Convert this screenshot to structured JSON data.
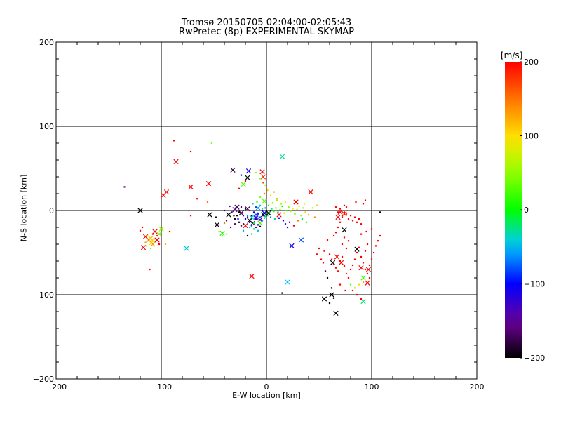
{
  "title": "Tromsø 20150705 02:04:00-02:05:43",
  "subtitle": "RwPretec (8p) EXPERIMENTAL SKYMAP",
  "colorbar": {
    "unit": "[m/s]",
    "ticks": [
      "200",
      "100",
      "0",
      "-100",
      "-200"
    ],
    "tick_values": [
      200,
      100,
      0,
      -100,
      -200
    ],
    "range": [
      -200,
      200
    ],
    "colormap": "rainbow (black-purple-blue-cyan-green-yellow-orange-red)"
  },
  "chart_data": {
    "type": "scatter",
    "title": "Tromsø 20150705 02:04:00-02:05:43",
    "subtitle": "RwPretec (8p) EXPERIMENTAL SKYMAP",
    "xlabel": "E-W location [km]",
    "ylabel": "N-S location [km]",
    "xlim": [
      -200,
      200
    ],
    "ylim": [
      -200,
      200
    ],
    "x_ticks": [
      "-200",
      "-100",
      "0",
      "100",
      "200"
    ],
    "y_ticks": [
      "200",
      "100",
      "0",
      "-100",
      "-200"
    ],
    "grid": "major lines at -100, 0, 100",
    "color_variable": "velocity [m/s]",
    "markers": {
      "x": "large crosses",
      "dot": "small points"
    },
    "points": [
      [
        -120,
        0,
        -200,
        "x"
      ],
      [
        -112,
        -35,
        150,
        "x"
      ],
      [
        -109,
        -38,
        100,
        "x"
      ],
      [
        -115,
        -31,
        200,
        "x"
      ],
      [
        -110,
        -33,
        120,
        "x"
      ],
      [
        -108,
        -40,
        130,
        "x"
      ],
      [
        -117,
        -44,
        200,
        "x"
      ],
      [
        -104,
        -35,
        200,
        "x"
      ],
      [
        -100,
        -22,
        50,
        "x"
      ],
      [
        -102,
        -28,
        40,
        "x"
      ],
      [
        -106,
        -25,
        200,
        "x"
      ],
      [
        -98,
        18,
        200,
        "x"
      ],
      [
        -95,
        22,
        190,
        "x"
      ],
      [
        -76,
        -45,
        -40,
        "x"
      ],
      [
        -72,
        28,
        200,
        "x"
      ],
      [
        -86,
        58,
        200,
        "x"
      ],
      [
        -55,
        32,
        200,
        "x"
      ],
      [
        -54,
        -5,
        -200,
        "x"
      ],
      [
        -47,
        -17,
        -190,
        "x"
      ],
      [
        -42,
        -27,
        0,
        "x"
      ],
      [
        -32,
        48,
        -180,
        "x"
      ],
      [
        -28,
        4,
        -180,
        "x"
      ],
      [
        -30,
        1,
        -150,
        "x"
      ],
      [
        -24,
        -3,
        -180,
        "x"
      ],
      [
        -36,
        -5,
        -200,
        "x"
      ],
      [
        -18,
        2,
        -170,
        "x"
      ],
      [
        -16,
        -12,
        -200,
        "x"
      ],
      [
        -13,
        -15,
        -170,
        "x"
      ],
      [
        -10,
        -8,
        -140,
        "x"
      ],
      [
        -6,
        -11,
        -120,
        "x"
      ],
      [
        -2,
        -3,
        -100,
        "x"
      ],
      [
        -22,
        31,
        30,
        "x"
      ],
      [
        -18,
        39,
        -200,
        "x"
      ],
      [
        -17,
        47,
        -110,
        "x"
      ],
      [
        -20,
        -18,
        200,
        "x"
      ],
      [
        -4,
        46,
        200,
        "x"
      ],
      [
        -3,
        40,
        180,
        "x"
      ],
      [
        -3,
        -5,
        -200,
        "x"
      ],
      [
        2,
        -3,
        -200,
        "x"
      ],
      [
        -2,
        11,
        30,
        "x"
      ],
      [
        -14,
        -8,
        -40,
        "x"
      ],
      [
        -8,
        3,
        -60,
        "x"
      ],
      [
        -6,
        -15,
        30,
        "x"
      ],
      [
        -10,
        -5,
        -80,
        "x"
      ],
      [
        -14,
        -78,
        200,
        "x"
      ],
      [
        15,
        64,
        -30,
        "x"
      ],
      [
        12,
        -5,
        200,
        "x"
      ],
      [
        24,
        -42,
        -110,
        "x"
      ],
      [
        33,
        -35,
        -80,
        "x"
      ],
      [
        28,
        10,
        200,
        "x"
      ],
      [
        42,
        22,
        200,
        "x"
      ],
      [
        20,
        -85,
        -50,
        "x"
      ],
      [
        55,
        -105,
        -200,
        "x"
      ],
      [
        62,
        -100,
        -200,
        "x"
      ],
      [
        66,
        -122,
        -200,
        "x"
      ],
      [
        63,
        -62,
        -200,
        "x"
      ],
      [
        74,
        -23,
        -200,
        "x"
      ],
      [
        71,
        -62,
        200,
        "x"
      ],
      [
        67,
        -55,
        200,
        "x"
      ],
      [
        86,
        -46,
        -200,
        "x"
      ],
      [
        90,
        -68,
        200,
        "x"
      ],
      [
        97,
        -70,
        200,
        "x"
      ],
      [
        96,
        -86,
        200,
        "x"
      ],
      [
        92,
        -108,
        -20,
        "x"
      ],
      [
        92,
        -80,
        20,
        "x"
      ],
      [
        70,
        -2,
        200,
        "x"
      ],
      [
        74,
        -4,
        200,
        "x"
      ],
      [
        68,
        -8,
        200,
        "x"
      ],
      [
        -135,
        28,
        -160,
        "d"
      ],
      [
        -118,
        -20,
        200,
        "d"
      ],
      [
        -111,
        -70,
        200,
        "d"
      ],
      [
        -113,
        -30,
        100,
        "d"
      ],
      [
        -111,
        -33,
        80,
        "d"
      ],
      [
        -109,
        -36,
        90,
        "d"
      ],
      [
        -107,
        -34,
        110,
        "d"
      ],
      [
        -115,
        -38,
        130,
        "d"
      ],
      [
        -114,
        -42,
        60,
        "d"
      ],
      [
        -110,
        -45,
        40,
        "d"
      ],
      [
        -104,
        -30,
        180,
        "d"
      ],
      [
        -102,
        -40,
        200,
        "d"
      ],
      [
        -108,
        -28,
        200,
        "d"
      ],
      [
        -120,
        -24,
        200,
        "d"
      ],
      [
        -96,
        -40,
        120,
        "d"
      ],
      [
        -92,
        -25,
        200,
        "d"
      ],
      [
        -88,
        83,
        200,
        "d"
      ],
      [
        -72,
        70,
        200,
        "d"
      ],
      [
        -72,
        -6,
        200,
        "d"
      ],
      [
        -66,
        14,
        200,
        "d"
      ],
      [
        -52,
        80,
        40,
        "d"
      ],
      [
        -56,
        10,
        150,
        "d"
      ],
      [
        -48,
        -8,
        -190,
        "d"
      ],
      [
        -45,
        -25,
        100,
        "d"
      ],
      [
        -40,
        -15,
        150,
        "d"
      ],
      [
        -38,
        -12,
        -160,
        "d"
      ],
      [
        -40,
        0,
        -170,
        "d"
      ],
      [
        -35,
        5,
        -140,
        "d"
      ],
      [
        -33,
        -2,
        -180,
        "d"
      ],
      [
        -31,
        -6,
        -200,
        "d"
      ],
      [
        -29,
        3,
        -120,
        "d"
      ],
      [
        -27,
        -10,
        -100,
        "d"
      ],
      [
        -26,
        -14,
        -190,
        "d"
      ],
      [
        -24,
        -18,
        -180,
        "d"
      ],
      [
        -22,
        -16,
        -160,
        "d"
      ],
      [
        -20,
        -10,
        -100,
        "d"
      ],
      [
        -18,
        -6,
        -60,
        "d"
      ],
      [
        -16,
        -20,
        -40,
        "d"
      ],
      [
        -14,
        -18,
        -80,
        "d"
      ],
      [
        -12,
        -22,
        -20,
        "d"
      ],
      [
        -10,
        -20,
        -140,
        "d"
      ],
      [
        -8,
        -17,
        -100,
        "d"
      ],
      [
        -6,
        -19,
        -200,
        "d"
      ],
      [
        -4,
        -12,
        -60,
        "d"
      ],
      [
        -2,
        -9,
        -40,
        "d"
      ],
      [
        -1,
        -7,
        -20,
        "d"
      ],
      [
        1,
        -6,
        -20,
        "d"
      ],
      [
        3,
        -2,
        0,
        "d"
      ],
      [
        5,
        2,
        -20,
        "d"
      ],
      [
        7,
        -1,
        10,
        "d"
      ],
      [
        9,
        3,
        30,
        "d"
      ],
      [
        11,
        -2,
        -30,
        "d"
      ],
      [
        13,
        1,
        50,
        "d"
      ],
      [
        15,
        5,
        0,
        "d"
      ],
      [
        17,
        -3,
        60,
        "d"
      ],
      [
        19,
        0,
        20,
        "d"
      ],
      [
        21,
        4,
        40,
        "d"
      ],
      [
        23,
        -1,
        70,
        "d"
      ],
      [
        25,
        2,
        90,
        "d"
      ],
      [
        27,
        -4,
        30,
        "d"
      ],
      [
        29,
        1,
        80,
        "d"
      ],
      [
        31,
        5,
        100,
        "d"
      ],
      [
        33,
        -6,
        40,
        "d"
      ],
      [
        35,
        3,
        60,
        "d"
      ],
      [
        37,
        -2,
        110,
        "d"
      ],
      [
        -24,
        4,
        -170,
        "d"
      ],
      [
        -20,
        2,
        -200,
        "d"
      ],
      [
        -16,
        0,
        -150,
        "d"
      ],
      [
        -12,
        -2,
        -100,
        "d"
      ],
      [
        -10,
        4,
        -80,
        "d"
      ],
      [
        -8,
        -4,
        -90,
        "d"
      ],
      [
        -6,
        6,
        -40,
        "d"
      ],
      [
        -4,
        2,
        -20,
        "d"
      ],
      [
        -3,
        -6,
        -110,
        "d"
      ],
      [
        -1,
        3,
        -60,
        "d"
      ],
      [
        0,
        -1,
        -200,
        "d"
      ],
      [
        2,
        6,
        10,
        "d"
      ],
      [
        4,
        -8,
        -70,
        "d"
      ],
      [
        6,
        9,
        30,
        "d"
      ],
      [
        8,
        -10,
        -30,
        "d"
      ],
      [
        10,
        12,
        50,
        "d"
      ],
      [
        12,
        -9,
        -100,
        "d"
      ],
      [
        14,
        8,
        60,
        "d"
      ],
      [
        16,
        -12,
        -120,
        "d"
      ],
      [
        18,
        10,
        80,
        "d"
      ],
      [
        -2,
        20,
        150,
        "d"
      ],
      [
        1,
        24,
        110,
        "d"
      ],
      [
        4,
        18,
        90,
        "d"
      ],
      [
        -6,
        16,
        40,
        "d"
      ],
      [
        7,
        22,
        130,
        "d"
      ],
      [
        10,
        14,
        120,
        "d"
      ],
      [
        -9,
        10,
        20,
        "d"
      ],
      [
        -13,
        8,
        -40,
        "d"
      ],
      [
        -26,
        26,
        200,
        "d"
      ],
      [
        -20,
        35,
        200,
        "d"
      ],
      [
        -24,
        42,
        -120,
        "d"
      ],
      [
        -10,
        45,
        50,
        "d"
      ],
      [
        -6,
        38,
        40,
        "d"
      ],
      [
        -3,
        33,
        180,
        "d"
      ],
      [
        -1,
        30,
        60,
        "d"
      ],
      [
        -34,
        -20,
        -130,
        "d"
      ],
      [
        -30,
        -16,
        -160,
        "d"
      ],
      [
        -38,
        -28,
        70,
        "d"
      ],
      [
        -42,
        -30,
        40,
        "d"
      ],
      [
        -14,
        -28,
        -30,
        "d"
      ],
      [
        -8,
        -24,
        -50,
        "d"
      ],
      [
        -18,
        -30,
        -200,
        "d"
      ],
      [
        -22,
        -24,
        -60,
        "d"
      ],
      [
        -12,
        -15,
        -10,
        "d"
      ],
      [
        -16,
        -14,
        -120,
        "d"
      ],
      [
        -28,
        -6,
        -200,
        "d"
      ],
      [
        -30,
        -10,
        -190,
        "d"
      ],
      [
        -26,
        -2,
        -200,
        "d"
      ],
      [
        -22,
        -6,
        -140,
        "d"
      ],
      [
        -18,
        -8,
        -170,
        "d"
      ],
      [
        -14,
        -6,
        -190,
        "d"
      ],
      [
        -10,
        -10,
        -120,
        "d"
      ],
      [
        -6,
        -8,
        -80,
        "d"
      ],
      [
        40,
        -5,
        120,
        "d"
      ],
      [
        44,
        3,
        80,
        "d"
      ],
      [
        46,
        -8,
        140,
        "d"
      ],
      [
        48,
        6,
        110,
        "d"
      ],
      [
        36,
        8,
        90,
        "d"
      ],
      [
        34,
        -10,
        -20,
        "d"
      ],
      [
        38,
        -14,
        20,
        "d"
      ],
      [
        20,
        -20,
        -110,
        "d"
      ],
      [
        18,
        -16,
        -90,
        "d"
      ],
      [
        22,
        -14,
        -140,
        "d"
      ],
      [
        26,
        -18,
        200,
        "d"
      ],
      [
        30,
        -12,
        150,
        "d"
      ],
      [
        15,
        -98,
        -200,
        "d"
      ],
      [
        58,
        -35,
        200,
        "d"
      ],
      [
        55,
        -48,
        200,
        "d"
      ],
      [
        60,
        -52,
        200,
        "d"
      ],
      [
        62,
        -58,
        200,
        "d"
      ],
      [
        64,
        -64,
        200,
        "d"
      ],
      [
        66,
        -68,
        200,
        "d"
      ],
      [
        68,
        -72,
        200,
        "d"
      ],
      [
        70,
        -60,
        200,
        "d"
      ],
      [
        72,
        -55,
        200,
        "d"
      ],
      [
        74,
        -66,
        200,
        "d"
      ],
      [
        76,
        -75,
        180,
        "d"
      ],
      [
        78,
        -80,
        200,
        "d"
      ],
      [
        80,
        -70,
        200,
        "d"
      ],
      [
        82,
        -65,
        200,
        "d"
      ],
      [
        84,
        -58,
        200,
        "d"
      ],
      [
        86,
        -50,
        200,
        "d"
      ],
      [
        88,
        -44,
        200,
        "d"
      ],
      [
        90,
        -55,
        200,
        "d"
      ],
      [
        92,
        -62,
        200,
        "d"
      ],
      [
        94,
        -70,
        200,
        "d"
      ],
      [
        96,
        -75,
        200,
        "d"
      ],
      [
        98,
        -65,
        200,
        "d"
      ],
      [
        100,
        -58,
        200,
        "d"
      ],
      [
        102,
        -50,
        200,
        "d"
      ],
      [
        104,
        -42,
        200,
        "d"
      ],
      [
        106,
        -36,
        200,
        "d"
      ],
      [
        108,
        -30,
        200,
        "d"
      ],
      [
        100,
        -22,
        200,
        "d"
      ],
      [
        95,
        -25,
        200,
        "d"
      ],
      [
        90,
        -28,
        200,
        "d"
      ],
      [
        96,
        -40,
        200,
        "d"
      ],
      [
        94,
        -48,
        200,
        "d"
      ],
      [
        98,
        -80,
        200,
        "d"
      ],
      [
        92,
        -85,
        130,
        "d"
      ],
      [
        88,
        -88,
        100,
        "d"
      ],
      [
        84,
        -92,
        60,
        "d"
      ],
      [
        80,
        -88,
        30,
        "d"
      ],
      [
        82,
        -95,
        200,
        "d"
      ],
      [
        86,
        -100,
        200,
        "d"
      ],
      [
        90,
        -105,
        200,
        "d"
      ],
      [
        75,
        -95,
        200,
        "d"
      ],
      [
        70,
        -88,
        200,
        "d"
      ],
      [
        64,
        -30,
        200,
        "d"
      ],
      [
        66,
        -26,
        200,
        "d"
      ],
      [
        68,
        -20,
        200,
        "d"
      ],
      [
        70,
        -14,
        200,
        "d"
      ],
      [
        72,
        -8,
        200,
        "d"
      ],
      [
        74,
        -2,
        200,
        "d"
      ],
      [
        76,
        4,
        200,
        "d"
      ],
      [
        66,
        4,
        200,
        "d"
      ],
      [
        68,
        -2,
        200,
        "d"
      ],
      [
        70,
        2,
        200,
        "d"
      ],
      [
        72,
        -6,
        200,
        "d"
      ],
      [
        74,
        6,
        200,
        "d"
      ],
      [
        76,
        -4,
        180,
        "d"
      ],
      [
        78,
        -10,
        200,
        "d"
      ],
      [
        80,
        -6,
        200,
        "d"
      ],
      [
        82,
        -12,
        200,
        "d"
      ],
      [
        84,
        -8,
        200,
        "d"
      ],
      [
        86,
        -14,
        200,
        "d"
      ],
      [
        88,
        -10,
        200,
        "d"
      ],
      [
        90,
        -16,
        200,
        "d"
      ],
      [
        92,
        8,
        200,
        "d"
      ],
      [
        94,
        12,
        200,
        "d"
      ],
      [
        85,
        10,
        200,
        "d"
      ],
      [
        108,
        -2,
        -200,
        "d"
      ],
      [
        62,
        -92,
        -200,
        "d"
      ],
      [
        58,
        -80,
        -200,
        "d"
      ],
      [
        56,
        -72,
        -180,
        "d"
      ],
      [
        60,
        -110,
        -200,
        "d"
      ],
      [
        64,
        -104,
        -200,
        "d"
      ],
      [
        52,
        -58,
        200,
        "d"
      ],
      [
        50,
        -45,
        200,
        "d"
      ],
      [
        48,
        -52,
        200,
        "d"
      ],
      [
        54,
        -62,
        200,
        "d"
      ],
      [
        72,
        -40,
        200,
        "d"
      ],
      [
        76,
        -45,
        200,
        "d"
      ],
      [
        78,
        -36,
        200,
        "d"
      ],
      [
        74,
        -32,
        200,
        "d"
      ]
    ]
  }
}
